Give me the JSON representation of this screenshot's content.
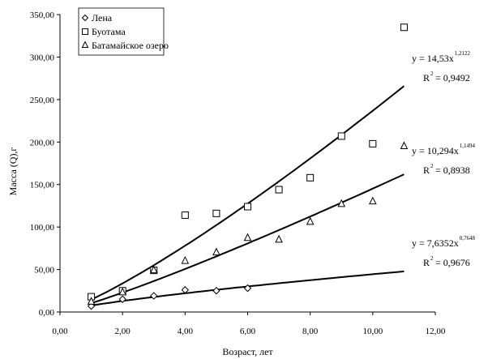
{
  "chart_data": {
    "type": "scatter",
    "xlabel": "Возраст, лет",
    "ylabel": "Масса (Q),г",
    "xlim": [
      0,
      12
    ],
    "ylim": [
      0,
      350
    ],
    "x_ticks": [
      "0,00",
      "2,00",
      "4,00",
      "6,00",
      "8,00",
      "10,00",
      "12,00"
    ],
    "y_ticks": [
      "0,00",
      "50,00",
      "100,00",
      "150,00",
      "200,00",
      "250,00",
      "300,00",
      "350,00"
    ],
    "grid": false,
    "legend_position": "top-left",
    "series": [
      {
        "name": "Лена",
        "marker": "diamond",
        "x": [
          1,
          2,
          3,
          4,
          5,
          6
        ],
        "y": [
          7,
          15,
          19,
          26,
          25,
          28
        ],
        "fit": {
          "type": "power",
          "a": 7.6352,
          "b": 0.7648,
          "x_range": [
            1,
            11
          ]
        },
        "equation_main": "y = 7,6352x",
        "equation_exp": "0,7648",
        "r2_main": "R",
        "r2_exp": "2",
        "r2_value": "= 0,9676"
      },
      {
        "name": "Буотама",
        "marker": "square",
        "x": [
          1,
          2,
          3,
          4,
          5,
          6,
          7,
          8,
          9,
          10,
          11
        ],
        "y": [
          18,
          25,
          49,
          114,
          116,
          124,
          144,
          158,
          207,
          198,
          335
        ],
        "fit": {
          "type": "power",
          "a": 14.53,
          "b": 1.2122,
          "x_range": [
            1,
            11
          ]
        },
        "equation_main": "y = 14,53x",
        "equation_exp": "1,2122",
        "r2_main": "R",
        "r2_exp": "2",
        "r2_value": "= 0,9492"
      },
      {
        "name": "Батамайское озеро",
        "marker": "triangle",
        "x": [
          1,
          2,
          3,
          4,
          5,
          6,
          7,
          8,
          9,
          10,
          11
        ],
        "y": [
          12,
          23,
          49,
          60,
          70,
          87,
          85,
          106,
          127,
          130,
          195
        ],
        "fit": {
          "type": "power",
          "a": 10.294,
          "b": 1.1494,
          "x_range": [
            1,
            11
          ]
        },
        "equation_main": "y = 10,294x",
        "equation_exp": "1,1494",
        "r2_main": "R",
        "r2_exp": "2",
        "r2_value": "= 0,8938"
      }
    ]
  }
}
